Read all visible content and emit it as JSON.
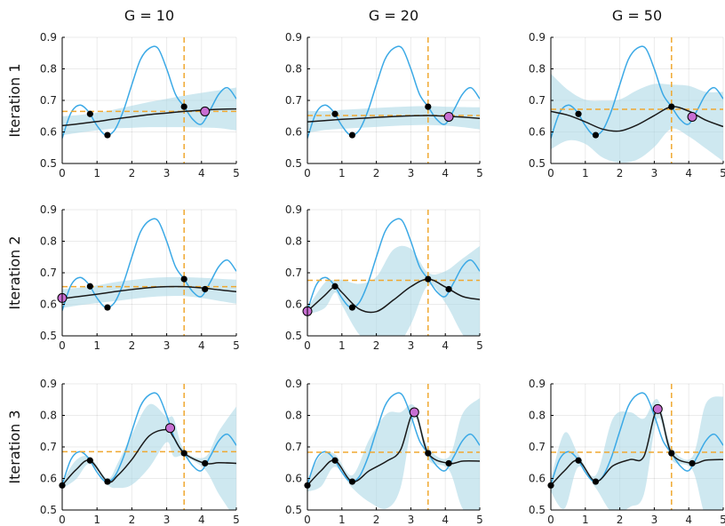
{
  "column_titles": [
    "G = 10",
    "G = 20",
    "G = 50"
  ],
  "row_titles": [
    "Iteration 1",
    "Iteration 2",
    "Iteration 3"
  ],
  "colors": {
    "true_function": "#3ba9e6",
    "posterior_mean": "#1a1a1a",
    "confidence_band": "#add8e6",
    "reference_line": "#f0a830",
    "observed_point": "#000000",
    "next_point": "#c86ed2"
  },
  "chart_data": {
    "type": "line",
    "layout": "3x3 grid (row 2, column 3 empty)",
    "xlim": [
      0,
      5
    ],
    "ylim": [
      0.5,
      0.9
    ],
    "x_ticks": [
      0,
      1,
      2,
      3,
      4,
      5
    ],
    "y_ticks": [
      0.5,
      0.6,
      0.7,
      0.8,
      0.9
    ],
    "grid": true,
    "true_function": {
      "x": [
        0,
        0.25,
        0.5,
        0.75,
        1,
        1.25,
        1.5,
        1.75,
        2,
        2.25,
        2.5,
        2.75,
        3,
        3.25,
        3.5,
        3.75,
        4,
        4.25,
        4.5,
        4.75,
        5
      ],
      "y": [
        0.58,
        0.66,
        0.685,
        0.665,
        0.62,
        0.59,
        0.605,
        0.665,
        0.75,
        0.83,
        0.865,
        0.865,
        0.8,
        0.72,
        0.68,
        0.64,
        0.625,
        0.67,
        0.72,
        0.74,
        0.705
      ]
    },
    "panels": [
      {
        "row": 1,
        "column": 1,
        "x": [
          0,
          0.5,
          1,
          1.5,
          2,
          2.5,
          3,
          3.5,
          4,
          4.5,
          5
        ],
        "mean": [
          0.62,
          0.626,
          0.633,
          0.641,
          0.648,
          0.655,
          0.66,
          0.665,
          0.669,
          0.672,
          0.673
        ],
        "band_halfwidth": [
          0.03,
          0.028,
          0.028,
          0.03,
          0.035,
          0.04,
          0.045,
          0.05,
          0.055,
          0.06,
          0.068
        ],
        "observed": [
          [
            0.8,
            0.657
          ],
          [
            1.3,
            0.59
          ],
          [
            3.5,
            0.68
          ]
        ],
        "next_point": [
          4.1,
          0.665
        ],
        "vline_x": 3.5,
        "hline_y": 0.665
      },
      {
        "row": 1,
        "column": 2,
        "x": [
          0,
          0.5,
          1,
          1.5,
          2,
          2.5,
          3,
          3.5,
          4,
          4.5,
          5
        ],
        "mean": [
          0.632,
          0.636,
          0.64,
          0.643,
          0.646,
          0.649,
          0.651,
          0.652,
          0.65,
          0.647,
          0.643
        ],
        "band_halfwidth": [
          0.035,
          0.03,
          0.03,
          0.03,
          0.03,
          0.03,
          0.03,
          0.03,
          0.03,
          0.032,
          0.035
        ],
        "observed": [
          [
            0.8,
            0.657
          ],
          [
            1.3,
            0.59
          ],
          [
            3.5,
            0.68
          ]
        ],
        "next_point": [
          4.1,
          0.648
        ],
        "vline_x": 3.5,
        "hline_y": 0.652
      },
      {
        "row": 1,
        "column": 3,
        "x": [
          0,
          0.5,
          1,
          1.5,
          2,
          2.5,
          3,
          3.5,
          4,
          4.5,
          5
        ],
        "mean": [
          0.665,
          0.653,
          0.632,
          0.609,
          0.603,
          0.622,
          0.652,
          0.68,
          0.666,
          0.637,
          0.617
        ],
        "band_halfwidth": [
          0.12,
          0.08,
          0.07,
          0.09,
          0.1,
          0.11,
          0.1,
          0.07,
          0.08,
          0.09,
          0.11
        ],
        "observed": [
          [
            0.8,
            0.657
          ],
          [
            1.3,
            0.59
          ],
          [
            3.5,
            0.68
          ]
        ],
        "next_point": [
          4.1,
          0.648
        ],
        "vline_x": 3.5,
        "hline_y": 0.672
      },
      {
        "row": 2,
        "column": 1,
        "x": [
          0,
          0.5,
          1,
          1.5,
          2,
          2.5,
          3,
          3.5,
          4,
          4.5,
          5
        ],
        "mean": [
          0.618,
          0.625,
          0.632,
          0.64,
          0.647,
          0.653,
          0.656,
          0.656,
          0.652,
          0.646,
          0.64
        ],
        "band_halfwidth": [
          0.03,
          0.028,
          0.028,
          0.03,
          0.03,
          0.03,
          0.03,
          0.03,
          0.032,
          0.035,
          0.038
        ],
        "observed": [
          [
            0.8,
            0.657
          ],
          [
            1.3,
            0.59
          ],
          [
            3.5,
            0.68
          ],
          [
            4.1,
            0.648
          ]
        ],
        "next_point": [
          0,
          0.62
        ],
        "vline_x": 3.5,
        "hline_y": 0.656
      },
      {
        "row": 2,
        "column": 2,
        "x": [
          0,
          0.5,
          0.8,
          1,
          1.5,
          2,
          2.5,
          3,
          3.5,
          4,
          4.5,
          5
        ],
        "mean": [
          0.578,
          0.628,
          0.657,
          0.638,
          0.585,
          0.577,
          0.614,
          0.656,
          0.68,
          0.655,
          0.625,
          0.615
        ],
        "band_halfwidth": [
          0.01,
          0.04,
          0.02,
          0.04,
          0.08,
          0.11,
          0.16,
          0.12,
          0.02,
          0.05,
          0.12,
          0.17
        ],
        "observed": [
          [
            0.8,
            0.657
          ],
          [
            1.3,
            0.59
          ],
          [
            3.5,
            0.68
          ],
          [
            4.1,
            0.648
          ]
        ],
        "next_point": [
          0,
          0.578
        ],
        "vline_x": 3.5,
        "hline_y": 0.676
      },
      {
        "row": 3,
        "column": 1,
        "x": [
          0,
          0.4,
          0.8,
          1.3,
          1.6,
          2,
          2.5,
          3,
          3.2,
          3.5,
          4.1,
          4.5,
          5
        ],
        "mean": [
          0.578,
          0.628,
          0.657,
          0.59,
          0.61,
          0.66,
          0.735,
          0.755,
          0.73,
          0.68,
          0.648,
          0.65,
          0.648
        ],
        "band_halfwidth": [
          0.01,
          0.03,
          0.01,
          0.01,
          0.04,
          0.08,
          0.1,
          0.04,
          0.06,
          0.01,
          0.02,
          0.1,
          0.18
        ],
        "observed": [
          [
            0,
            0.578
          ],
          [
            0.8,
            0.657
          ],
          [
            1.3,
            0.59
          ],
          [
            3.5,
            0.68
          ],
          [
            4.1,
            0.648
          ]
        ],
        "next_point": [
          3.1,
          0.76
        ],
        "vline_x": 3.5,
        "hline_y": 0.685
      },
      {
        "row": 3,
        "column": 2,
        "x": [
          0,
          0.4,
          0.8,
          1.3,
          1.8,
          2.3,
          2.7,
          3.1,
          3.5,
          4.1,
          4.5,
          5
        ],
        "mean": [
          0.578,
          0.625,
          0.657,
          0.59,
          0.625,
          0.655,
          0.69,
          0.81,
          0.68,
          0.648,
          0.655,
          0.655
        ],
        "band_halfwidth": [
          0.02,
          0.05,
          0.02,
          0.02,
          0.1,
          0.15,
          0.12,
          0.02,
          0.02,
          0.02,
          0.15,
          0.2
        ],
        "observed": [
          [
            0,
            0.578
          ],
          [
            0.8,
            0.657
          ],
          [
            1.3,
            0.59
          ],
          [
            3.5,
            0.68
          ],
          [
            4.1,
            0.648
          ]
        ],
        "next_point": [
          3.1,
          0.81
        ],
        "vline_x": 3.5,
        "hline_y": 0.683
      },
      {
        "row": 3,
        "column": 3,
        "x": [
          0,
          0.4,
          0.8,
          1.3,
          1.8,
          2.3,
          2.7,
          3.1,
          3.5,
          4.1,
          4.5,
          5
        ],
        "mean": [
          0.578,
          0.625,
          0.657,
          0.59,
          0.64,
          0.66,
          0.67,
          0.82,
          0.68,
          0.648,
          0.658,
          0.66
        ],
        "band_halfwidth": [
          0.02,
          0.12,
          0.02,
          0.02,
          0.15,
          0.15,
          0.12,
          0.03,
          0.02,
          0.02,
          0.18,
          0.2
        ],
        "observed": [
          [
            0,
            0.578
          ],
          [
            0.8,
            0.657
          ],
          [
            1.3,
            0.59
          ],
          [
            3.5,
            0.68
          ],
          [
            4.1,
            0.648
          ]
        ],
        "next_point": [
          3.1,
          0.82
        ],
        "vline_x": 3.5,
        "hline_y": 0.683
      }
    ]
  }
}
